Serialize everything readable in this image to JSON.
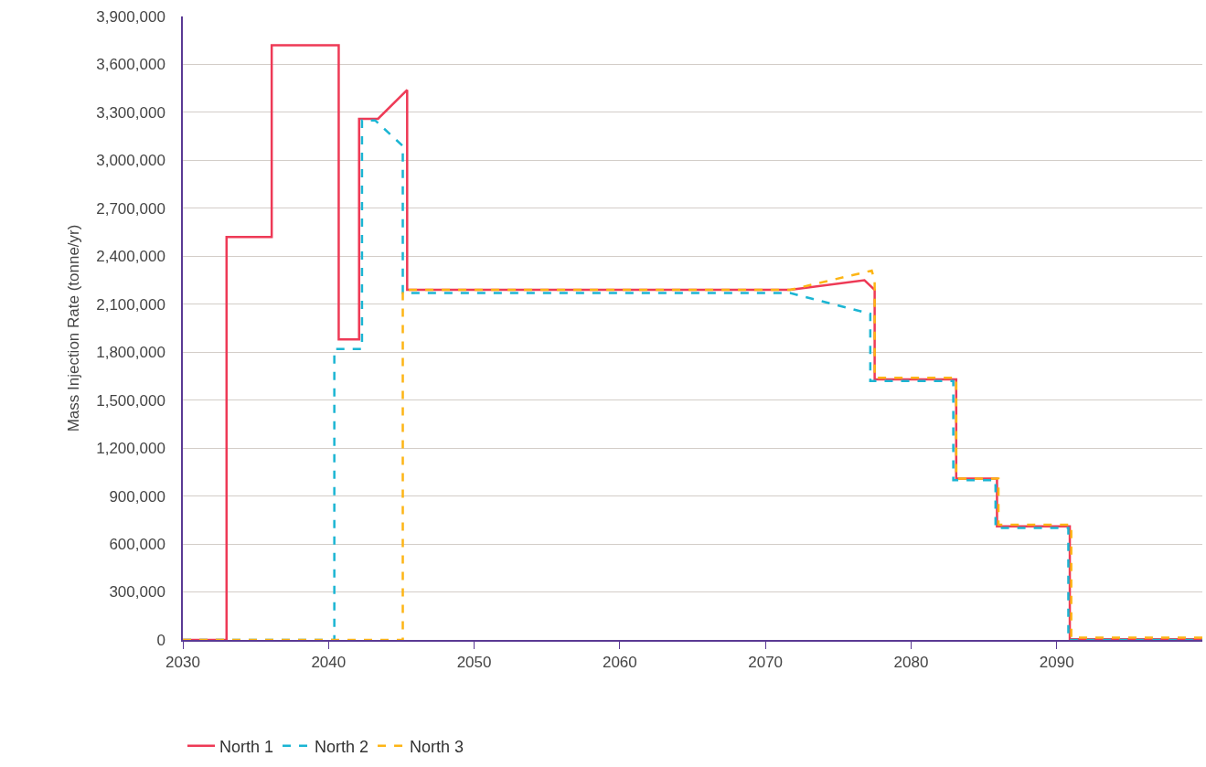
{
  "chart_data": {
    "type": "line",
    "ylabel": "Mass Injection Rate (tonne/yr)",
    "series": [
      {
        "name": "North 1",
        "color": "#ee3a56",
        "line_style": "solid",
        "x": [
          2030,
          2033,
          2033,
          2036.1,
          2036.1,
          2040.7,
          2040.7,
          2042.1,
          2042.1,
          2043.4,
          2045.4,
          2045.4,
          2071.7,
          2076.8,
          2077.5,
          2077.5,
          2083.1,
          2083.1,
          2085.9,
          2085.9,
          2090.9,
          2090.9,
          2100
        ],
        "values": [
          0,
          0,
          2520000,
          2520000,
          3720000,
          3720000,
          1880000,
          1880000,
          3260000,
          3260000,
          3440000,
          2190000,
          2190000,
          2250000,
          2190000,
          1630000,
          1630000,
          1010000,
          1010000,
          710000,
          710000,
          5000,
          5000
        ]
      },
      {
        "name": "North 2",
        "color": "#1bb5d3",
        "line_style": "dashed",
        "x": [
          2030,
          2040.4,
          2040.4,
          2042.3,
          2042.3,
          2043.2,
          2045.1,
          2045.1,
          2071.7,
          2077.2,
          2077.2,
          2082.9,
          2082.9,
          2085.8,
          2085.8,
          2090.8,
          2090.8,
          2100
        ],
        "values": [
          0,
          0,
          1820000,
          1820000,
          3250000,
          3250000,
          3090000,
          2170000,
          2170000,
          2040000,
          1620000,
          1620000,
          1000000,
          1000000,
          700000,
          700000,
          0,
          0
        ]
      },
      {
        "name": "North 3",
        "color": "#fdb515",
        "line_style": "dashed",
        "x": [
          2030,
          2045.1,
          2045.1,
          2071.7,
          2077.3,
          2077.5,
          2077.5,
          2083.1,
          2083.1,
          2086,
          2086,
          2091,
          2091,
          2100
        ],
        "values": [
          0,
          0,
          2190000,
          2190000,
          2310000,
          2250000,
          1640000,
          1640000,
          1010000,
          1010000,
          720000,
          720000,
          15000,
          15000
        ]
      }
    ],
    "xlim": [
      2030,
      2100
    ],
    "xticks": [
      2030,
      2040,
      2050,
      2060,
      2070,
      2080,
      2090
    ],
    "ylim": [
      0,
      3900000
    ],
    "yticks": [
      0,
      {
        "value": 300000,
        "label": "300,000"
      },
      {
        "value": 600000,
        "label": "600,000"
      },
      {
        "value": 900000,
        "label": "900,000"
      },
      {
        "value": 1200000,
        "label": "1,200,000"
      },
      {
        "value": 1500000,
        "label": "1,500,000"
      },
      {
        "value": 1800000,
        "label": "1,800,000"
      },
      {
        "value": 2100000,
        "label": "2,100,000"
      },
      {
        "value": 2400000,
        "label": "2,400,000"
      },
      {
        "value": 2700000,
        "label": "2,700,000"
      },
      {
        "value": 3000000,
        "label": "3,000,000"
      },
      {
        "value": 3300000,
        "label": "3,300,000"
      },
      {
        "value": 3600000,
        "label": "3,600,000"
      },
      {
        "value": 3900000,
        "label": "3,900,000"
      }
    ],
    "grid": "y",
    "legend": "bottom left",
    "marker": "none"
  }
}
